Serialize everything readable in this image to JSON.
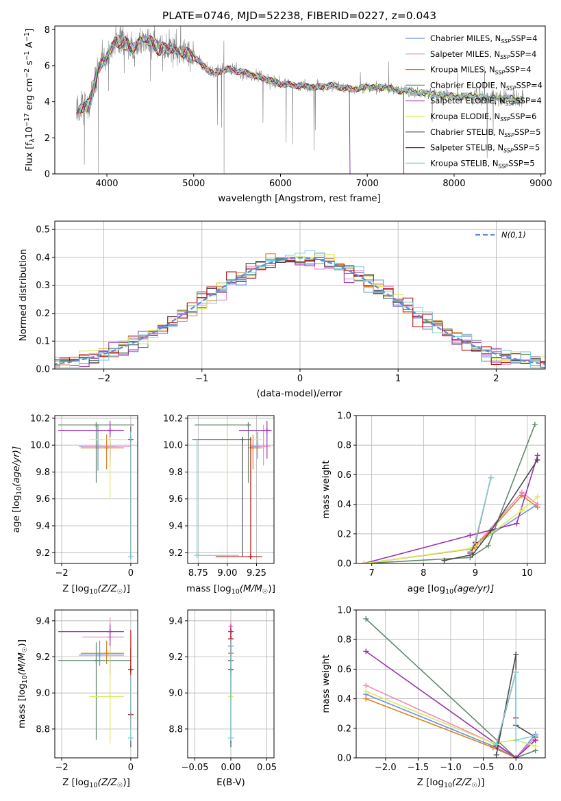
{
  "figure": {
    "title": "PLATE=0746, MJD=52238, FIBERID=0227, z=0.043"
  },
  "series_names": [
    "Chabrier MILES, N$SSP=4",
    "Salpeter MILES, N$SSP=4",
    "Kroupa MILES, N$SSP=4",
    "Chabrier ELODIE, N$SSP=4",
    "Salpeter ELODIE, N$SSP=4",
    "Kroupa ELODIE, N$SSP=6",
    "Chabrier STELIB, N$SSP=5",
    "Salpeter STELIB, N$SSP=5",
    "Kroupa STELIB, N$SSP=5"
  ],
  "colors": [
    "#6a8fe0",
    "#ee88c0",
    "#d98326",
    "#62886a",
    "#9a30b0",
    "#d9ea5a",
    "#4a4a4a",
    "#b01010",
    "#80d0dc"
  ],
  "chart_data": [
    {
      "type": "line",
      "id": "spectrum",
      "title": "PLATE=0746, MJD=52238, FIBERID=0227, z=0.043",
      "xlabel": "wavelength [Angstrom, rest frame]",
      "ylabel_parts": [
        "Flux [f",
        "λ",
        "10",
        "−17",
        " erg cm",
        "−2",
        " s",
        "−1",
        " A",
        "−1",
        "]"
      ],
      "xlim": [
        3400,
        9050
      ],
      "ylim": [
        0,
        8.2
      ],
      "xticks": [
        4000,
        5000,
        6000,
        7000,
        8000,
        9000
      ],
      "yticks": [
        0,
        2,
        4,
        6,
        8
      ],
      "legend": "top-right",
      "continuum": {
        "x": [
          3650,
          3700,
          3800,
          3900,
          4000,
          4100,
          4200,
          4300,
          4400,
          4500,
          4600,
          4700,
          4800,
          4900,
          5000,
          5200,
          5400,
          5600,
          5800,
          6000,
          6200,
          6400,
          6600,
          6800,
          7000,
          7200,
          7400,
          7600,
          7800,
          8000,
          8200,
          8400,
          8600,
          8800
        ],
        "y": [
          3.3,
          3.7,
          3.9,
          5.8,
          6.5,
          7.4,
          7.2,
          6.9,
          7.5,
          7.3,
          6.9,
          7.0,
          6.8,
          6.7,
          6.5,
          5.6,
          5.8,
          5.6,
          5.3,
          5.0,
          4.9,
          4.8,
          4.9,
          4.7,
          4.8,
          4.8,
          4.6,
          4.5,
          4.4,
          4.3,
          4.3,
          4.2,
          4.2,
          4.1
        ]
      },
      "model_end": {
        "Salpeter ELODIE": 6800,
        "Salpeter STELIB": 7420
      }
    },
    {
      "type": "line",
      "id": "residuals",
      "xlabel": "(data-model)/error",
      "ylabel": "Normed distribution",
      "xlim": [
        -2.5,
        2.5
      ],
      "ylim": [
        0,
        0.53
      ],
      "xticks": [
        -2,
        -1,
        0,
        1,
        2
      ],
      "yticks": [
        0,
        0.1,
        0.2,
        0.3,
        0.4,
        0.5
      ],
      "legend": "top-right",
      "normal_label": "N(0,1)",
      "bin_width": 0.1
    },
    {
      "type": "scatter",
      "id": "age-vs-Z",
      "xlabel_parts": [
        "Z [log",
        "10",
        "(Z/Z",
        "☉",
        ")]"
      ],
      "ylabel_parts": [
        "age  [log",
        "10",
        "(age/yr)]"
      ],
      "xlim": [
        -2.2,
        0.2
      ],
      "ylim": [
        9.12,
        10.22
      ],
      "xticks": [
        -2,
        0
      ],
      "yticks": [
        9.2,
        9.4,
        9.6,
        9.8,
        10.0,
        10.2
      ],
      "points": [
        {
          "x": -0.95,
          "y": 9.99,
          "xlo": -1.5,
          "xhi": -0.4,
          "ylo": 9.81,
          "yhi": 10.15
        },
        {
          "x": -0.6,
          "y": 9.99,
          "xlo": -1.4,
          "xhi": 0.0,
          "ylo": 9.85,
          "yhi": 10.15
        },
        {
          "x": -0.7,
          "y": 9.98,
          "xlo": -1.45,
          "xhi": -0.2,
          "ylo": 9.82,
          "yhi": 10.08
        },
        {
          "x": -1.0,
          "y": 10.15,
          "xlo": -2.1,
          "xhi": 0.1,
          "ylo": 9.72,
          "yhi": 10.15
        },
        {
          "x": -0.6,
          "y": 10.11,
          "xlo": -2.1,
          "xhi": -0.2,
          "ylo": 9.9,
          "yhi": 10.18
        },
        {
          "x": -0.6,
          "y": 10.04,
          "xlo": -1.2,
          "xhi": 0.0,
          "ylo": 9.61,
          "yhi": 10.05
        },
        {
          "x": 0.0,
          "y": 10.04,
          "xlo": -0.05,
          "xhi": 0.05,
          "ylo": 9.17,
          "yhi": 10.14
        },
        {
          "x": 0.0,
          "y": 9.17,
          "xlo": -0.05,
          "xhi": 0.05,
          "ylo": 9.16,
          "yhi": 10.1
        },
        {
          "x": 0.0,
          "y": 9.17,
          "xlo": -0.05,
          "xhi": 0.05,
          "ylo": 9.16,
          "yhi": 10.1
        }
      ]
    },
    {
      "type": "scatter",
      "id": "age-vs-mass",
      "xlabel_parts": [
        "mass [log",
        "10",
        "(M/M",
        "☉",
        ")]"
      ],
      "ylabel_parts": [],
      "xlim": [
        8.66,
        9.4
      ],
      "ylim": [
        9.12,
        10.22
      ],
      "xticks": [
        8.75,
        9.0,
        9.25
      ],
      "xtick_labels": [
        "8.75",
        "9.00",
        "9.25"
      ],
      "yticks": [
        9.2,
        9.4,
        9.6,
        9.8,
        10.0,
        10.2
      ],
      "points": [
        {
          "x": 9.26,
          "y": 9.99,
          "xlo": 9.2,
          "xhi": 9.3,
          "ylo": 9.9,
          "yhi": 10.1
        },
        {
          "x": 9.31,
          "y": 9.99,
          "xlo": 9.25,
          "xhi": 9.37,
          "ylo": 9.85,
          "yhi": 10.15
        },
        {
          "x": 9.22,
          "y": 9.98,
          "xlo": 9.18,
          "xhi": 9.3,
          "ylo": 9.82,
          "yhi": 10.08
        },
        {
          "x": 9.18,
          "y": 10.15,
          "xlo": 8.72,
          "xhi": 9.18,
          "ylo": 9.72,
          "yhi": 10.15
        },
        {
          "x": 9.34,
          "y": 10.11,
          "xlo": 9.1,
          "xhi": 9.38,
          "ylo": 9.9,
          "yhi": 10.18
        },
        {
          "x": 9.0,
          "y": 10.04,
          "xlo": 8.75,
          "xhi": 9.3,
          "ylo": 9.61,
          "yhi": 10.05
        },
        {
          "x": 9.13,
          "y": 10.04,
          "xlo": 8.7,
          "xhi": 9.2,
          "ylo": 9.17,
          "yhi": 10.04
        },
        {
          "x": 9.2,
          "y": 9.17,
          "xlo": 8.9,
          "xhi": 9.3,
          "ylo": 9.16,
          "yhi": 10.06
        },
        {
          "x": 8.74,
          "y": 9.18,
          "xlo": 8.74,
          "xhi": 9.1,
          "ylo": 9.18,
          "yhi": 10.04
        }
      ]
    },
    {
      "type": "line",
      "id": "massweight-vs-age",
      "xlabel_parts": [
        "age  [log",
        "10",
        "(age/yr)]"
      ],
      "ylabel": "mass weight",
      "xlim": [
        6.7,
        10.35
      ],
      "ylim": [
        0,
        1.0
      ],
      "xticks": [
        7,
        8,
        9,
        10
      ],
      "yticks": [
        0,
        0.2,
        0.4,
        0.6,
        0.8,
        1.0
      ],
      "series": [
        {
          "x": [
            6.85,
            8.95,
            9.0,
            9.1,
            10.2
          ],
          "y": [
            0.0,
            0.1,
            0.12,
            0.15,
            0.4
          ]
        },
        {
          "x": [
            6.85,
            8.95,
            9.0,
            9.9,
            10.2
          ],
          "y": [
            0.0,
            0.1,
            0.12,
            0.48,
            0.4
          ]
        },
        {
          "x": [
            6.85,
            8.95,
            9.0,
            9.9,
            10.2
          ],
          "y": [
            0.0,
            0.1,
            0.11,
            0.46,
            0.38
          ]
        },
        {
          "x": [
            6.85,
            8.9,
            9.25,
            10.15
          ],
          "y": [
            0.0,
            0.04,
            0.12,
            0.94
          ]
        },
        {
          "x": [
            6.85,
            8.9,
            9.8,
            10.2
          ],
          "y": [
            0.0,
            0.19,
            0.27,
            0.73
          ]
        },
        {
          "x": [
            6.85,
            8.9,
            9.0,
            9.9,
            10.2
          ],
          "y": [
            0.0,
            0.1,
            0.12,
            0.36,
            0.45
          ]
        },
        {
          "x": [
            8.4,
            8.95,
            9.3,
            10.2
          ],
          "y": [
            0.02,
            0.06,
            0.22,
            0.7
          ]
        },
        {
          "x": [
            8.9,
            9.0,
            9.3
          ],
          "y": [
            0.07,
            0.14,
            0.58
          ]
        },
        {
          "x": [
            8.9,
            9.0,
            9.3
          ],
          "y": [
            0.08,
            0.15,
            0.58
          ]
        }
      ]
    },
    {
      "type": "scatter",
      "id": "mass-vs-Z",
      "xlabel_parts": [
        "Z [log",
        "10",
        "(Z/Z",
        "☉",
        ")]"
      ],
      "ylabel_parts": [
        "mass [log",
        "10",
        "(M/M",
        "☉",
        ")]"
      ],
      "xlim": [
        -2.2,
        0.2
      ],
      "ylim": [
        8.64,
        9.46
      ],
      "xticks": [
        -2,
        0
      ],
      "yticks": [
        8.8,
        9.0,
        9.2,
        9.4
      ],
      "points": [
        {
          "x": -0.9,
          "y": 9.21,
          "xlo": -1.5,
          "xhi": -0.2,
          "ylo": 9.15,
          "yhi": 9.29
        },
        {
          "x": -0.6,
          "y": 9.31,
          "xlo": -1.4,
          "xhi": -0.2,
          "ylo": 9.25,
          "yhi": 9.42
        },
        {
          "x": -0.7,
          "y": 9.22,
          "xlo": -1.45,
          "xhi": -0.2,
          "ylo": 9.16,
          "yhi": 9.29
        },
        {
          "x": -1.0,
          "y": 9.18,
          "xlo": -2.1,
          "xhi": 0.0,
          "ylo": 8.74,
          "yhi": 9.28
        },
        {
          "x": -0.6,
          "y": 9.34,
          "xlo": -2.1,
          "xhi": -0.2,
          "ylo": 9.1,
          "yhi": 9.38
        },
        {
          "x": -0.6,
          "y": 8.98,
          "xlo": -1.2,
          "xhi": -0.2,
          "ylo": 8.72,
          "yhi": 9.26
        },
        {
          "x": 0.0,
          "y": 9.13,
          "xlo": -0.05,
          "xhi": 0.05,
          "ylo": 8.7,
          "yhi": 9.25
        },
        {
          "x": 0.0,
          "y": 8.88,
          "xlo": -0.05,
          "xhi": 0.05,
          "ylo": 8.8,
          "yhi": 9.35
        },
        {
          "x": 0.0,
          "y": 8.75,
          "xlo": -0.05,
          "xhi": 0.05,
          "ylo": 8.74,
          "yhi": 9.1
        }
      ]
    },
    {
      "type": "scatter",
      "id": "mass-vs-ebv",
      "xlabel": "E(B-V)",
      "xlim": [
        -0.06,
        0.06
      ],
      "ylim": [
        8.64,
        9.46
      ],
      "xticks": [
        -0.05,
        0.0,
        0.05
      ],
      "xtick_labels": [
        "−0.05",
        "0.00",
        "0.05"
      ],
      "yticks": [
        8.8,
        9.0,
        9.2,
        9.4
      ],
      "points": [
        {
          "x": 0.0,
          "y": 9.26,
          "ylo": 9.0,
          "yhi": 9.3
        },
        {
          "x": 0.0,
          "y": 9.37,
          "ylo": 9.2,
          "yhi": 9.4
        },
        {
          "x": 0.0,
          "y": 9.22,
          "ylo": 9.0,
          "yhi": 9.3
        },
        {
          "x": 0.0,
          "y": 9.18,
          "ylo": 8.72,
          "yhi": 9.28
        },
        {
          "x": 0.0,
          "y": 9.34,
          "ylo": 9.1,
          "yhi": 9.38
        },
        {
          "x": 0.0,
          "y": 8.98,
          "ylo": 8.75,
          "yhi": 9.26
        },
        {
          "x": 0.0,
          "y": 9.13,
          "ylo": 8.7,
          "yhi": 9.25
        },
        {
          "x": 0.0,
          "y": 9.3,
          "ylo": 9.2,
          "yhi": 9.36
        },
        {
          "x": 0.0,
          "y": 8.75,
          "ylo": 8.74,
          "yhi": 9.3
        }
      ]
    },
    {
      "type": "line",
      "id": "massweight-vs-Z",
      "xlabel_parts": [
        "Z [log",
        "10",
        "(Z/Z",
        "☉",
        ")]"
      ],
      "ylabel": "mass weight",
      "xlim": [
        -2.45,
        0.45
      ],
      "ylim": [
        0,
        1.0
      ],
      "xticks": [
        -2.0,
        -1.5,
        -1.0,
        -0.5,
        0.0
      ],
      "xtick_labels": [
        "−2.0",
        "−1.5",
        "−1.0",
        "−0.5",
        "0.0"
      ],
      "yticks": [
        0,
        0.2,
        0.4,
        0.6,
        0.8,
        1.0
      ],
      "series": [
        {
          "x": [
            -2.3,
            -0.35,
            0.0,
            0.3
          ],
          "y": [
            0.43,
            0.08,
            0.0,
            0.16
          ]
        },
        {
          "x": [
            -2.3,
            -0.35,
            0.0,
            0.3
          ],
          "y": [
            0.49,
            0.1,
            0.0,
            0.14
          ]
        },
        {
          "x": [
            -2.3,
            -0.35,
            0.0,
            0.3
          ],
          "y": [
            0.4,
            0.07,
            0.0,
            0.12
          ]
        },
        {
          "x": [
            -2.3,
            0.0,
            0.3
          ],
          "y": [
            0.94,
            0.0,
            0.05
          ]
        },
        {
          "x": [
            -2.3,
            0.0,
            0.3
          ],
          "y": [
            0.72,
            0.0,
            0.12
          ]
        },
        {
          "x": [
            -2.3,
            -0.35,
            0.0,
            0.3
          ],
          "y": [
            0.45,
            0.1,
            0.12,
            0.08
          ]
        },
        {
          "x": [
            -0.3,
            0.0,
            0.0,
            0.3
          ],
          "y": [
            0.02,
            0.7,
            0.22,
            0.14
          ]
        },
        {
          "x": [
            -0.3,
            0.0,
            0.0
          ],
          "y": [
            0.08,
            0.58,
            0.27
          ]
        },
        {
          "x": [
            -0.3,
            0.0,
            0.0,
            0.3
          ],
          "y": [
            0.09,
            0.58,
            0.12,
            0.15
          ]
        }
      ]
    }
  ]
}
